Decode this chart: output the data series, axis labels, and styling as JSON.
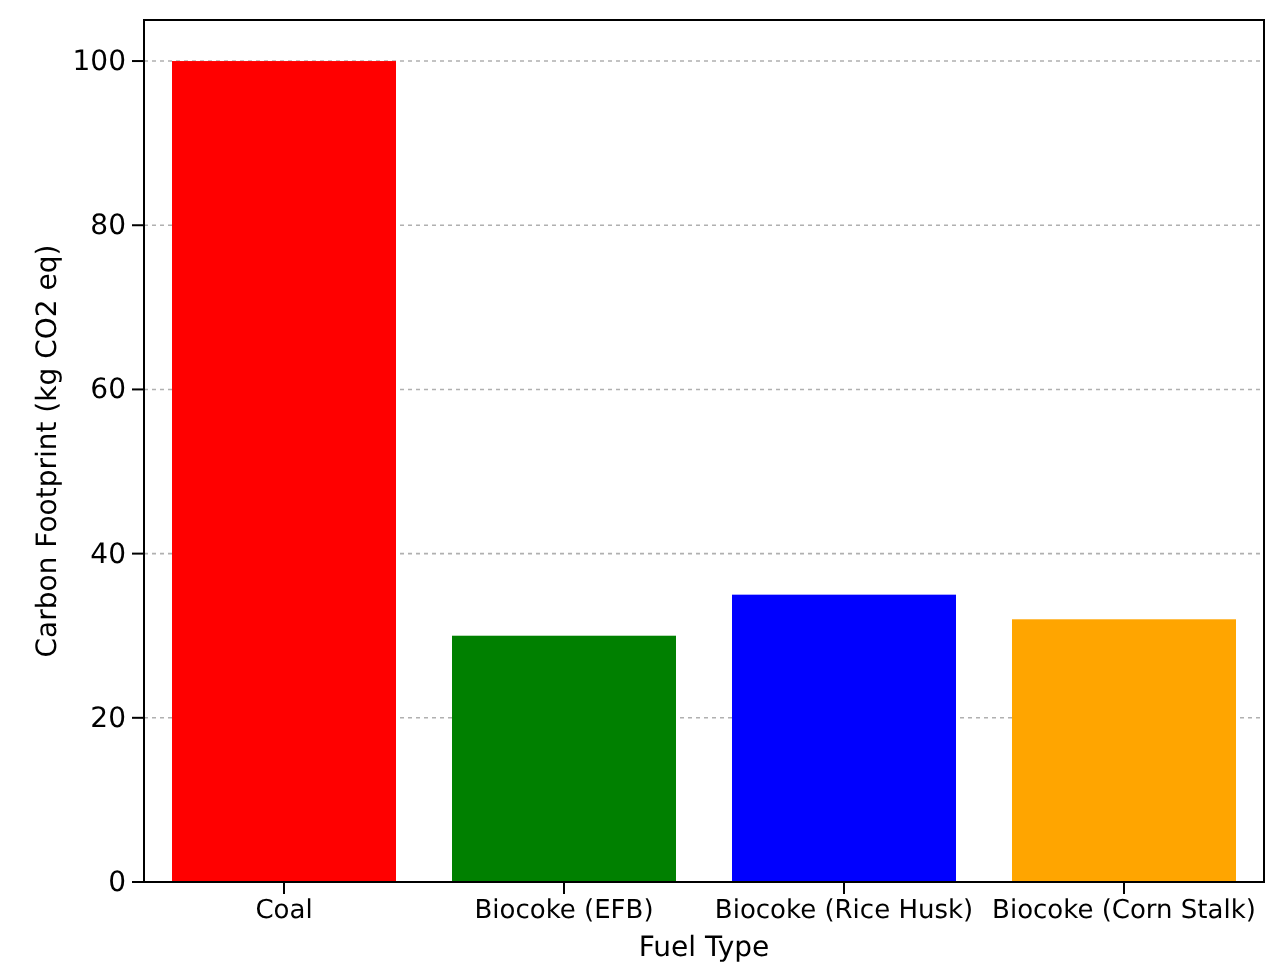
{
  "chart_data": {
    "type": "bar",
    "xlabel": "Fuel Type",
    "ylabel": "Carbon Footprint (kg CO2 eq)",
    "categories": [
      "Coal",
      "Biocoke (EFB)",
      "Biocoke (Rice Husk)",
      "Biocoke (Corn Stalk)"
    ],
    "values": [
      100,
      30,
      35,
      32
    ],
    "colors": [
      "#ff0000",
      "#008000",
      "#0000ff",
      "#ffa500"
    ],
    "ylim": [
      0,
      105
    ],
    "yticks": [
      0,
      20,
      40,
      60,
      80,
      100
    ],
    "grid": "y"
  }
}
